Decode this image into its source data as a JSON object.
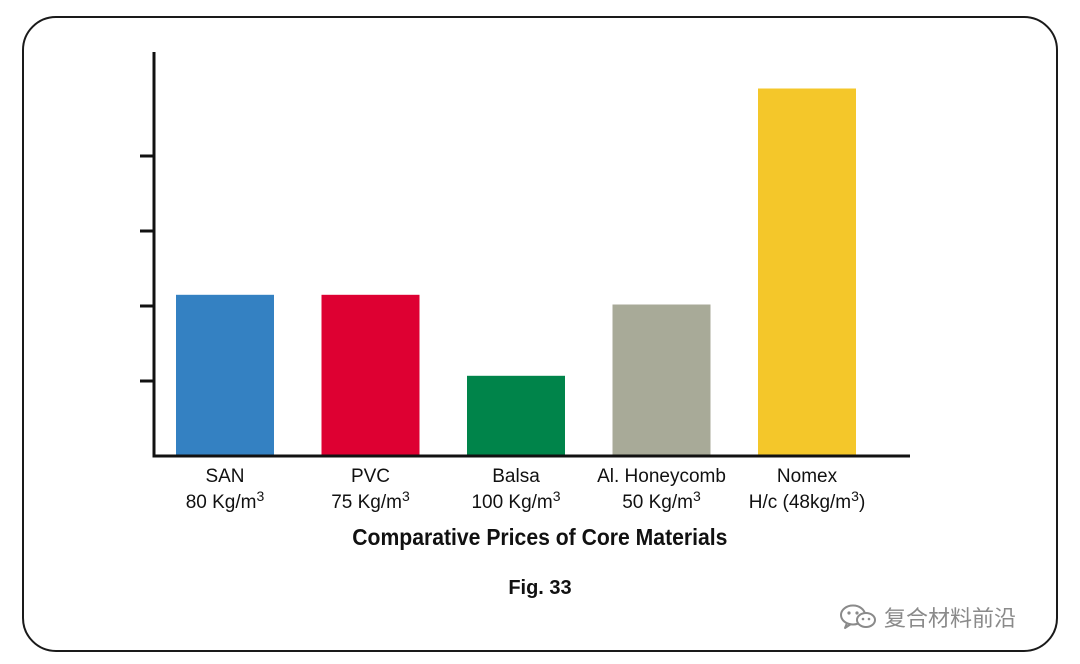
{
  "chart_data": {
    "type": "bar",
    "title": "Comparative Prices of Core Materials",
    "xlabel": "",
    "ylabel": "",
    "y_tick_labels": false,
    "ylim": [
      0,
      5
    ],
    "yticks": [
      1,
      2,
      3,
      4
    ],
    "categories": [
      {
        "name": "SAN",
        "density": "80 Kg/m",
        "sup": "3",
        "suffix": ""
      },
      {
        "name": "PVC",
        "density": "75 Kg/m",
        "sup": "3",
        "suffix": ""
      },
      {
        "name": "Balsa",
        "density": "100 Kg/m",
        "sup": "3",
        "suffix": ""
      },
      {
        "name": "Al. Honeycomb",
        "density": "50 Kg/m",
        "sup": "3",
        "suffix": ""
      },
      {
        "name": "Nomex",
        "density": "H/c (48kg/m",
        "sup": "3",
        "suffix": ")"
      }
    ],
    "values": [
      2.15,
      2.15,
      1.07,
      2.02,
      4.9
    ],
    "colors": [
      "#3481c2",
      "#de0032",
      "#00844a",
      "#a8aa98",
      "#f4c72a"
    ],
    "grid": false,
    "legend": "none"
  },
  "caption": "Fig. 33",
  "watermark": {
    "text": "复合材料前沿",
    "icon": "wechat-icon"
  }
}
